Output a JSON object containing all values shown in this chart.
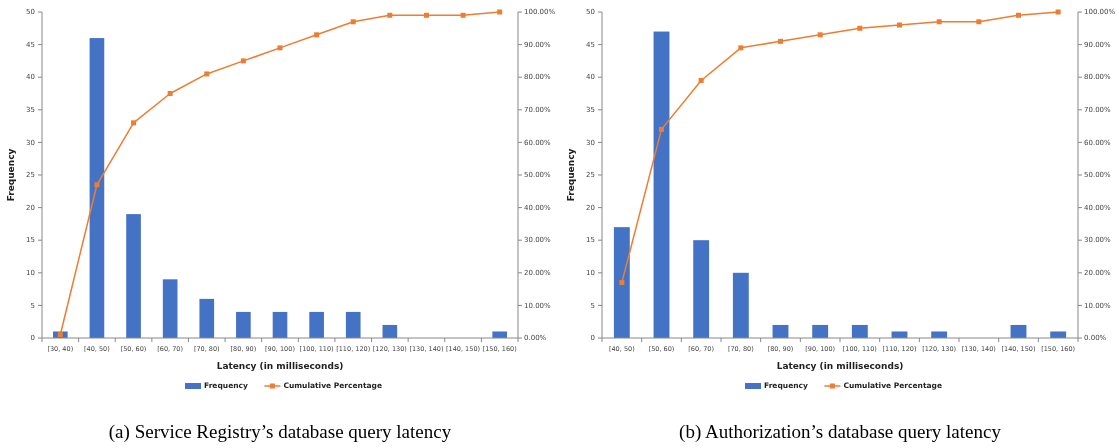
{
  "chart_data": [
    {
      "type": "bar",
      "title": "(a) Service Registry’s database query latency",
      "xlabel": "Latency (in milliseconds)",
      "ylabel": "Frequency",
      "categories": [
        "[30, 40)",
        "[40, 50)",
        "[50, 60)",
        "[60, 70)",
        "[70, 80)",
        "[80, 90)",
        "[90, 100)",
        "[100, 110)",
        "[110, 120)",
        "[120, 130)",
        "[130, 140)",
        "[140, 150)",
        "[150, 160)"
      ],
      "series": [
        {
          "name": "Frequency",
          "color": "#4472c4",
          "values": [
            1,
            46,
            19,
            9,
            6,
            4,
            4,
            4,
            4,
            2,
            0,
            0,
            1
          ]
        },
        {
          "name": "Cumulative Percentage",
          "type": "line",
          "axis": "y2",
          "color": "#ed7d31",
          "marker": "square",
          "values": [
            1,
            47,
            66,
            75,
            81,
            85,
            89,
            93,
            97,
            99,
            99,
            99,
            100
          ]
        }
      ],
      "ylim": [
        0,
        50
      ],
      "yticks": [
        0,
        5,
        10,
        15,
        20,
        25,
        30,
        35,
        40,
        45,
        50
      ],
      "y2lim": [
        0,
        100
      ],
      "y2ticks": [
        {
          "value": 0,
          "label": "0.00%"
        },
        {
          "value": 10,
          "label": "10.00%"
        },
        {
          "value": 20,
          "label": "20.00%"
        },
        {
          "value": 30,
          "label": "30.00%"
        },
        {
          "value": 40,
          "label": "40.00%"
        },
        {
          "value": 50,
          "label": "50.00%"
        },
        {
          "value": 60,
          "label": "60.00%"
        },
        {
          "value": 70,
          "label": "70.00%"
        },
        {
          "value": 80,
          "label": "80.00%"
        },
        {
          "value": 90,
          "label": "90.00%"
        },
        {
          "value": 100,
          "label": "100.00%"
        }
      ],
      "legend": "bottom",
      "grid": false
    },
    {
      "type": "bar",
      "title": "(b) Authorization’s database query latency",
      "xlabel": "Latency (in milliseconds)",
      "ylabel": "Frequency",
      "categories": [
        "[40, 50)",
        "[50, 60)",
        "[60, 70)",
        "[70, 80)",
        "[80, 90)",
        "[90, 100)",
        "[100, 110)",
        "[110, 120)",
        "[120, 130)",
        "[130, 140)",
        "[140, 150)",
        "[150, 160)"
      ],
      "series": [
        {
          "name": "Frequency",
          "color": "#4472c4",
          "values": [
            17,
            47,
            15,
            10,
            2,
            2,
            2,
            1,
            1,
            0,
            2,
            1
          ]
        },
        {
          "name": "Cumulative Percentage",
          "type": "line",
          "axis": "y2",
          "color": "#ed7d31",
          "marker": "square",
          "values": [
            17,
            64,
            79,
            89,
            91,
            93,
            95,
            96,
            97,
            97,
            99,
            100
          ]
        }
      ],
      "ylim": [
        0,
        50
      ],
      "yticks": [
        0,
        5,
        10,
        15,
        20,
        25,
        30,
        35,
        40,
        45,
        50
      ],
      "y2lim": [
        0,
        100
      ],
      "y2ticks": [
        {
          "value": 0,
          "label": "0.00%"
        },
        {
          "value": 10,
          "label": "10.00%"
        },
        {
          "value": 20,
          "label": "20.00%"
        },
        {
          "value": 30,
          "label": "30.00%"
        },
        {
          "value": 40,
          "label": "40.00%"
        },
        {
          "value": 50,
          "label": "50.00%"
        },
        {
          "value": 60,
          "label": "60.00%"
        },
        {
          "value": 70,
          "label": "70.00%"
        },
        {
          "value": 80,
          "label": "80.00%"
        },
        {
          "value": 90,
          "label": "90.00%"
        },
        {
          "value": 100,
          "label": "100.00%"
        }
      ],
      "legend": "bottom",
      "grid": false
    }
  ]
}
